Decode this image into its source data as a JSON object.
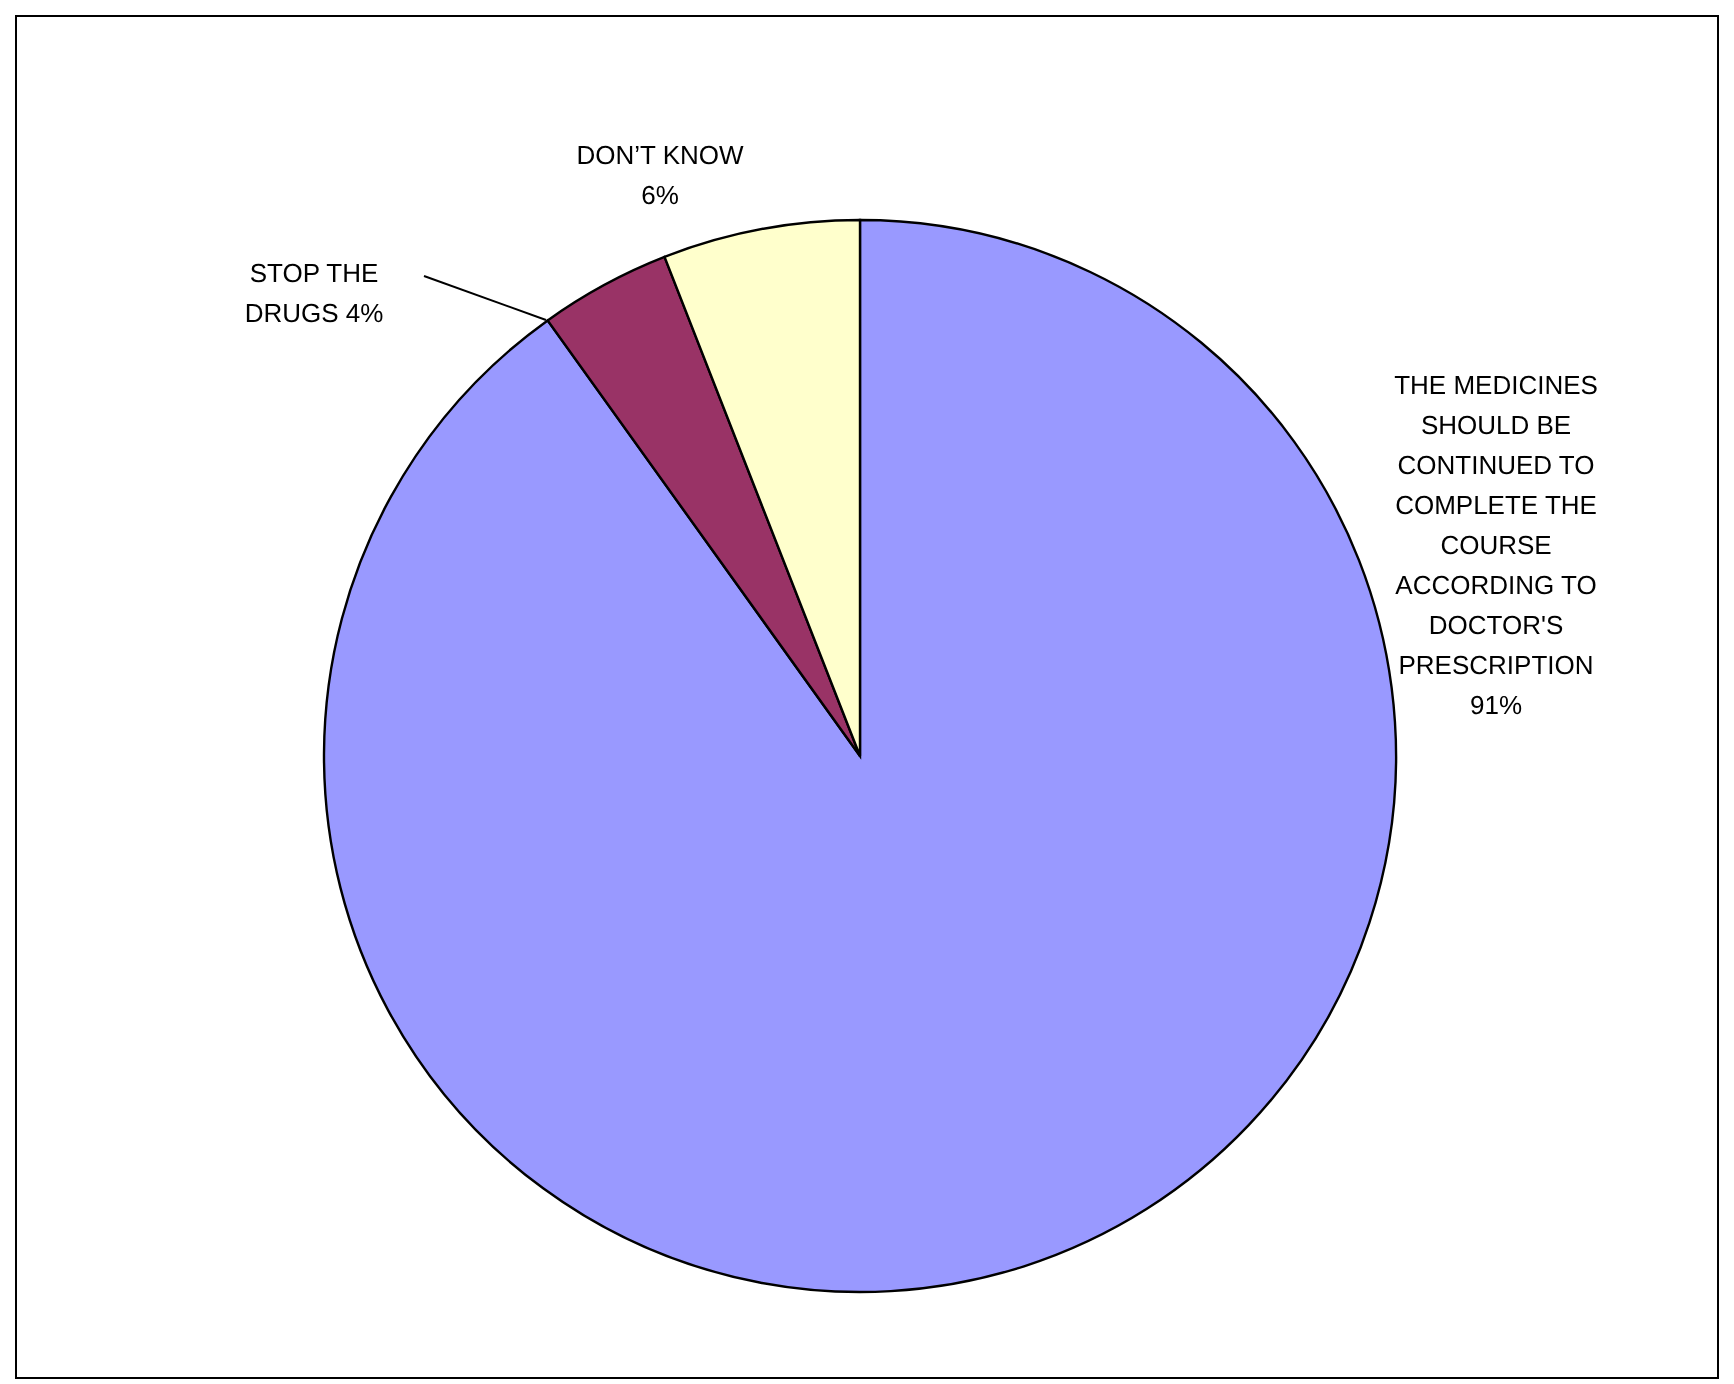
{
  "chart_data": {
    "type": "pie",
    "categories": [
      "THE MEDICINES SHOULD BE CONTINUED TO COMPLETE THE COURSE ACCORDING TO DOCTOR'S PRESCRIPTION",
      "STOP THE DRUGS",
      "DON’T KNOW"
    ],
    "values": [
      91,
      4,
      6
    ],
    "colors": [
      "#9999ff",
      "#993366",
      "#ffffcc"
    ],
    "value_labels": [
      "91%",
      "4%",
      "6%"
    ]
  }
}
